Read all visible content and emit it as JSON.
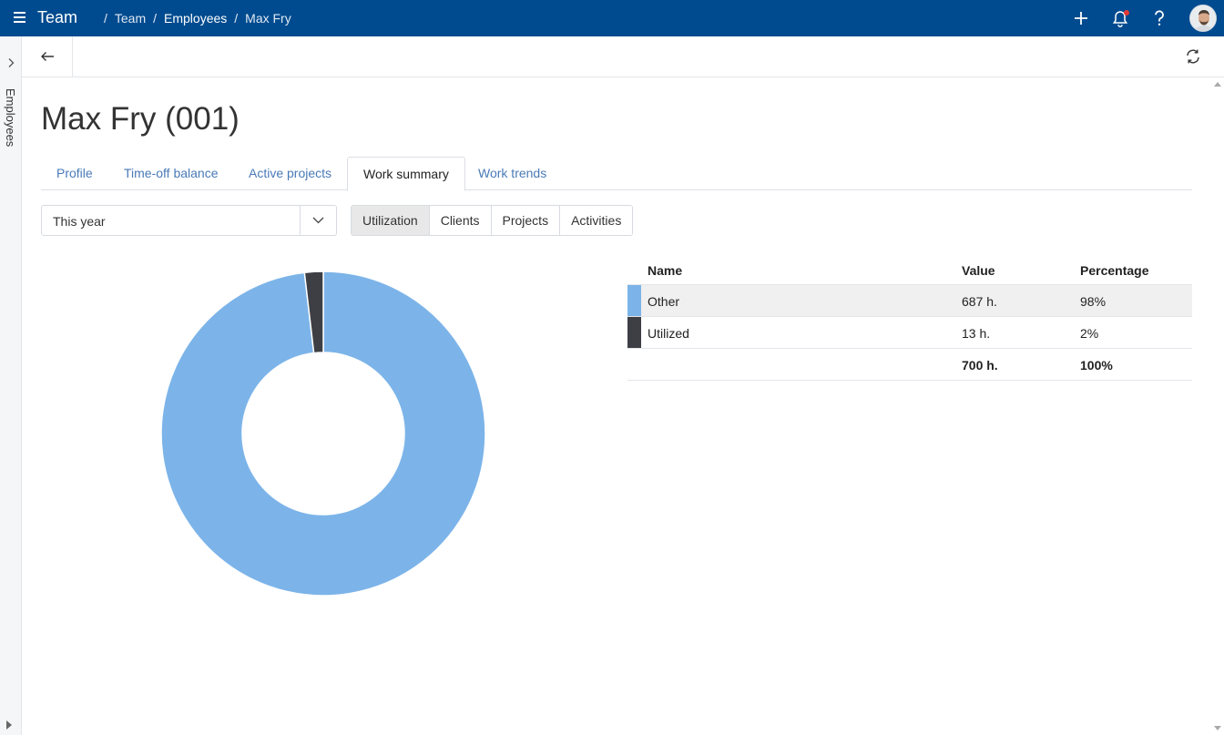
{
  "app": {
    "title": "Team"
  },
  "breadcrumb": [
    {
      "label": "Team"
    },
    {
      "label": "Employees"
    },
    {
      "label": "Max Fry"
    }
  ],
  "topbar": {
    "icons": [
      "menu-icon",
      "add-icon",
      "bell-icon",
      "help-icon",
      "avatar"
    ]
  },
  "side_rail": {
    "label": "Employees"
  },
  "page": {
    "title": "Max Fry (001)"
  },
  "tabs": [
    {
      "label": "Profile",
      "active": false
    },
    {
      "label": "Time-off balance",
      "active": false
    },
    {
      "label": "Active projects",
      "active": false
    },
    {
      "label": "Work summary",
      "active": true
    },
    {
      "label": "Work trends",
      "active": false
    }
  ],
  "filters": {
    "period": "This year",
    "views": [
      {
        "label": "Utilization",
        "active": true
      },
      {
        "label": "Clients",
        "active": false
      },
      {
        "label": "Projects",
        "active": false
      },
      {
        "label": "Activities",
        "active": false
      }
    ]
  },
  "table": {
    "headers": {
      "name": "Name",
      "value": "Value",
      "percentage": "Percentage"
    },
    "rows": [
      {
        "name": "Other",
        "value": "687 h.",
        "percentage": "98%",
        "color": "#7cb4e9"
      },
      {
        "name": "Utilized",
        "value": "13 h.",
        "percentage": "2%",
        "color": "#3d3f45"
      }
    ],
    "total": {
      "value": "700 h.",
      "percentage": "100%"
    }
  },
  "chart_data": {
    "type": "pie",
    "categories": [
      "Other",
      "Utilized"
    ],
    "values": [
      687,
      13
    ],
    "colors": [
      "#7cb4e9",
      "#3d3f45"
    ],
    "donut": true
  }
}
